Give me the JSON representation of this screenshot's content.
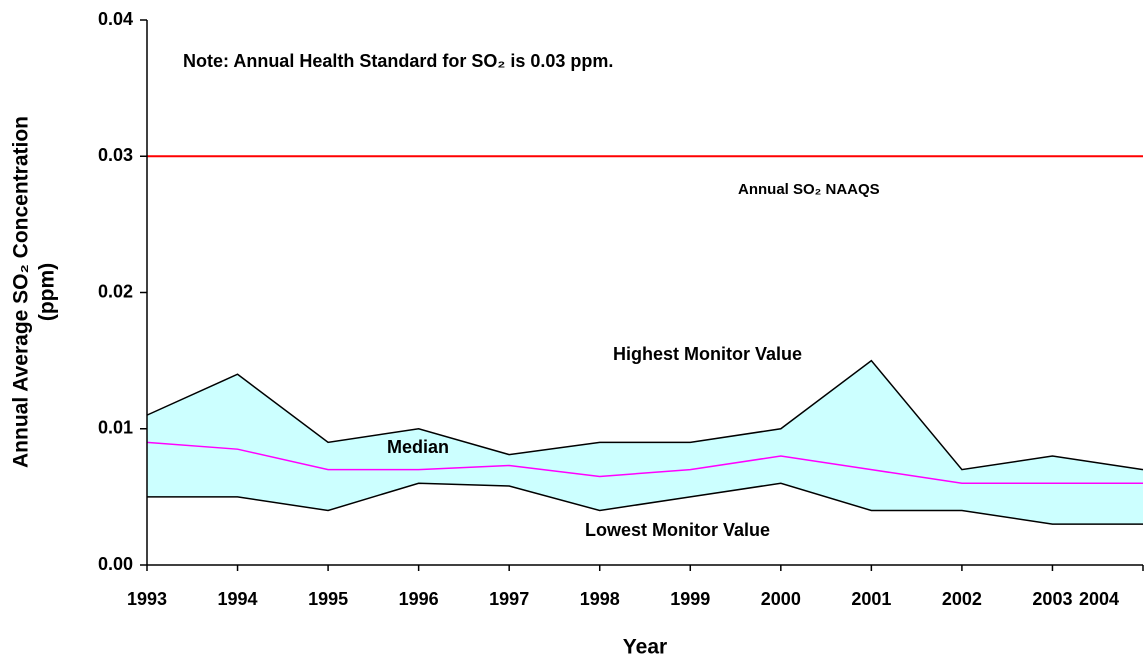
{
  "chart_data": {
    "type": "line",
    "x_label": "Year",
    "y_label": [
      "Annual Average SO₂ Concentration",
      "(ppm)"
    ],
    "note": "Note: Annual Health Standard for SO₂ is 0.03 ppm.",
    "x": [
      1993,
      1994,
      1995,
      1996,
      1997,
      1998,
      1999,
      2000,
      2001,
      2002,
      2003,
      2004
    ],
    "xlim": [
      1993,
      2004
    ],
    "xticks": [
      1993,
      1994,
      1995,
      1996,
      1997,
      1998,
      1999,
      2000,
      2001,
      2002,
      2003,
      2004
    ],
    "ylim": [
      0,
      0.04
    ],
    "yticks": [
      {
        "value": 0,
        "label": "0.00"
      },
      0.01,
      0.02,
      0.03,
      0.04
    ],
    "band_fill": "#ccffff",
    "series": [
      {
        "name": "Highest Monitor Value",
        "color": "#000000",
        "values": [
          0.011,
          0.014,
          0.009,
          0.01,
          0.0081,
          0.009,
          0.009,
          0.01,
          0.015,
          0.007,
          0.008,
          0.007
        ]
      },
      {
        "name": "Median",
        "color": "#ff00ff",
        "values": [
          0.009,
          0.0085,
          0.007,
          0.007,
          0.0073,
          0.0065,
          0.007,
          0.008,
          0.007,
          0.006,
          0.006,
          0.006
        ]
      },
      {
        "name": "Lowest Monitor Value",
        "color": "#000000",
        "values": [
          0.005,
          0.005,
          0.004,
          0.006,
          0.0058,
          0.004,
          0.005,
          0.006,
          0.004,
          0.004,
          0.003,
          0.003
        ]
      }
    ],
    "standard": {
      "name": "Annual SO₂ NAAQS",
      "value": 0.03,
      "color": "#ff0000"
    }
  }
}
